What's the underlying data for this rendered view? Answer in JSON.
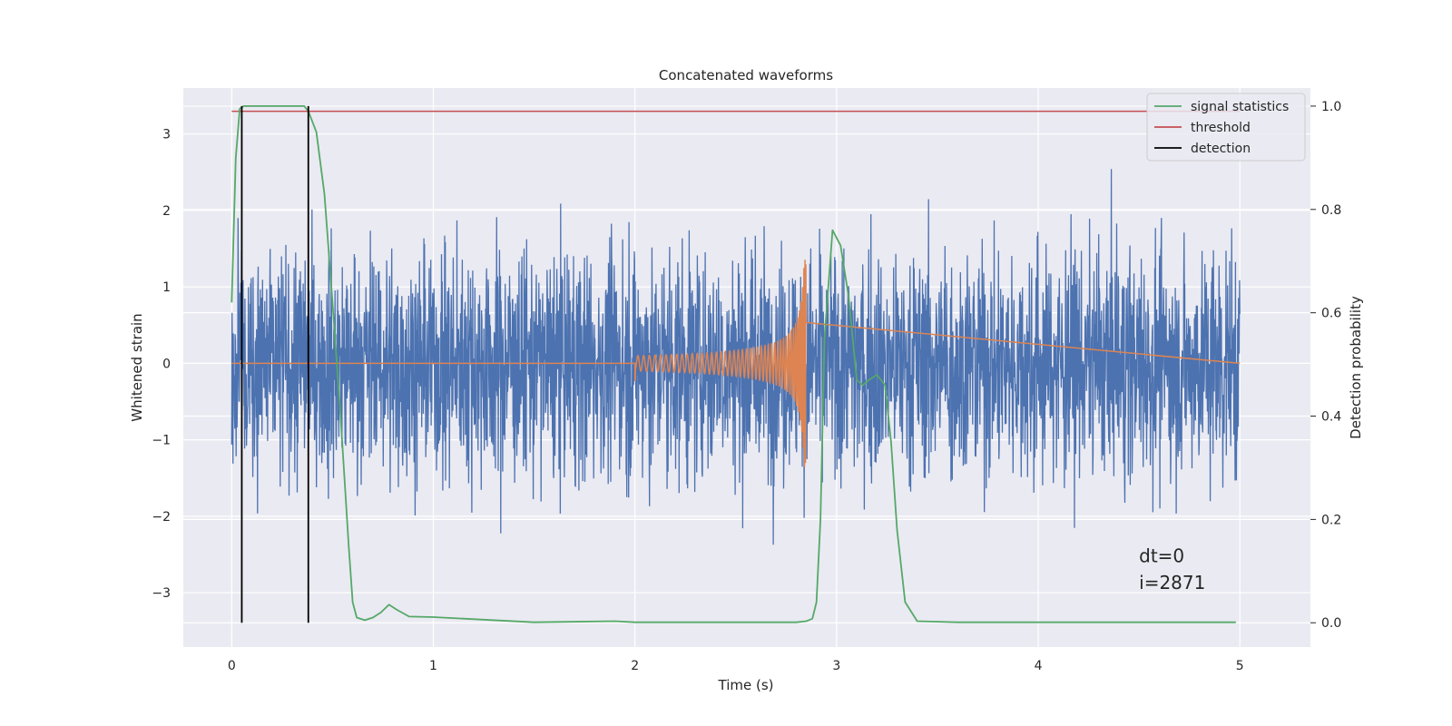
{
  "chart_data": {
    "type": "line",
    "title": "Concatenated waveforms",
    "xlabel": "Time (s)",
    "ylabel": "Whitened strain",
    "y2label": "Detection probability",
    "xlim": [
      -0.24,
      5.35
    ],
    "ylim": [
      -3.71,
      3.6
    ],
    "y2lim": [
      -0.047,
      1.035
    ],
    "xticks": [
      0,
      1,
      2,
      3,
      4,
      5
    ],
    "yticks": [
      -3,
      -2,
      -1,
      0,
      1,
      2,
      3
    ],
    "y2ticks": [
      0.0,
      0.2,
      0.4,
      0.6,
      0.8,
      1.0
    ],
    "xtick_labels": [
      "0",
      "1",
      "2",
      "3",
      "4",
      "5"
    ],
    "ytick_labels": [
      "−3",
      "−2",
      "−1",
      "0",
      "1",
      "2",
      "3"
    ],
    "y2tick_labels": [
      "0.0",
      "0.2",
      "0.4",
      "0.6",
      "0.8",
      "1.0"
    ],
    "grid": true,
    "legend_position": "top-right",
    "colors": {
      "noise": "#4c72b0",
      "template": "#dd8452",
      "signal_statistics": "#55a868",
      "threshold": "#c44e52",
      "detection": "#000000",
      "background": "#eaeaf2",
      "grid": "#ffffff"
    },
    "series": [
      {
        "name": "signal statistics",
        "axis": "right",
        "x": [
          0.0,
          0.02,
          0.04,
          0.06,
          0.1,
          0.2,
          0.3,
          0.36,
          0.38,
          0.42,
          0.46,
          0.5,
          0.54,
          0.58,
          0.6,
          0.62,
          0.66,
          0.7,
          0.74,
          0.78,
          0.82,
          0.88,
          1.0,
          1.5,
          1.9,
          2.0,
          2.1,
          2.5,
          2.8,
          2.85,
          2.88,
          2.9,
          2.92,
          2.94,
          2.98,
          3.02,
          3.06,
          3.1,
          3.13,
          3.16,
          3.2,
          3.24,
          3.27,
          3.3,
          3.34,
          3.4,
          3.6,
          4.0,
          4.5,
          4.98
        ],
        "y": [
          0.62,
          0.9,
          0.995,
          1.0,
          1.0,
          1.0,
          1.0,
          1.0,
          0.99,
          0.95,
          0.83,
          0.62,
          0.4,
          0.15,
          0.04,
          0.01,
          0.005,
          0.01,
          0.02,
          0.035,
          0.025,
          0.012,
          0.011,
          0.001,
          0.003,
          0.001,
          0.001,
          0.001,
          0.001,
          0.003,
          0.008,
          0.04,
          0.2,
          0.55,
          0.76,
          0.73,
          0.63,
          0.47,
          0.46,
          0.47,
          0.48,
          0.46,
          0.35,
          0.18,
          0.04,
          0.003,
          0.001,
          0.001,
          0.001,
          0.001
        ]
      },
      {
        "name": "threshold",
        "axis": "right",
        "x": [
          0.0,
          5.0
        ],
        "y": [
          0.99,
          0.99
        ]
      },
      {
        "name": "detection",
        "axis": "right",
        "x": [
          0.05,
          0.38
        ],
        "y": [
          1.0,
          1.0
        ]
      }
    ],
    "annotations": [
      {
        "text": "dt=0",
        "x": 4.5,
        "y": -2.6
      },
      {
        "text": "i=2871",
        "x": 4.5,
        "y": -2.95
      }
    ]
  }
}
